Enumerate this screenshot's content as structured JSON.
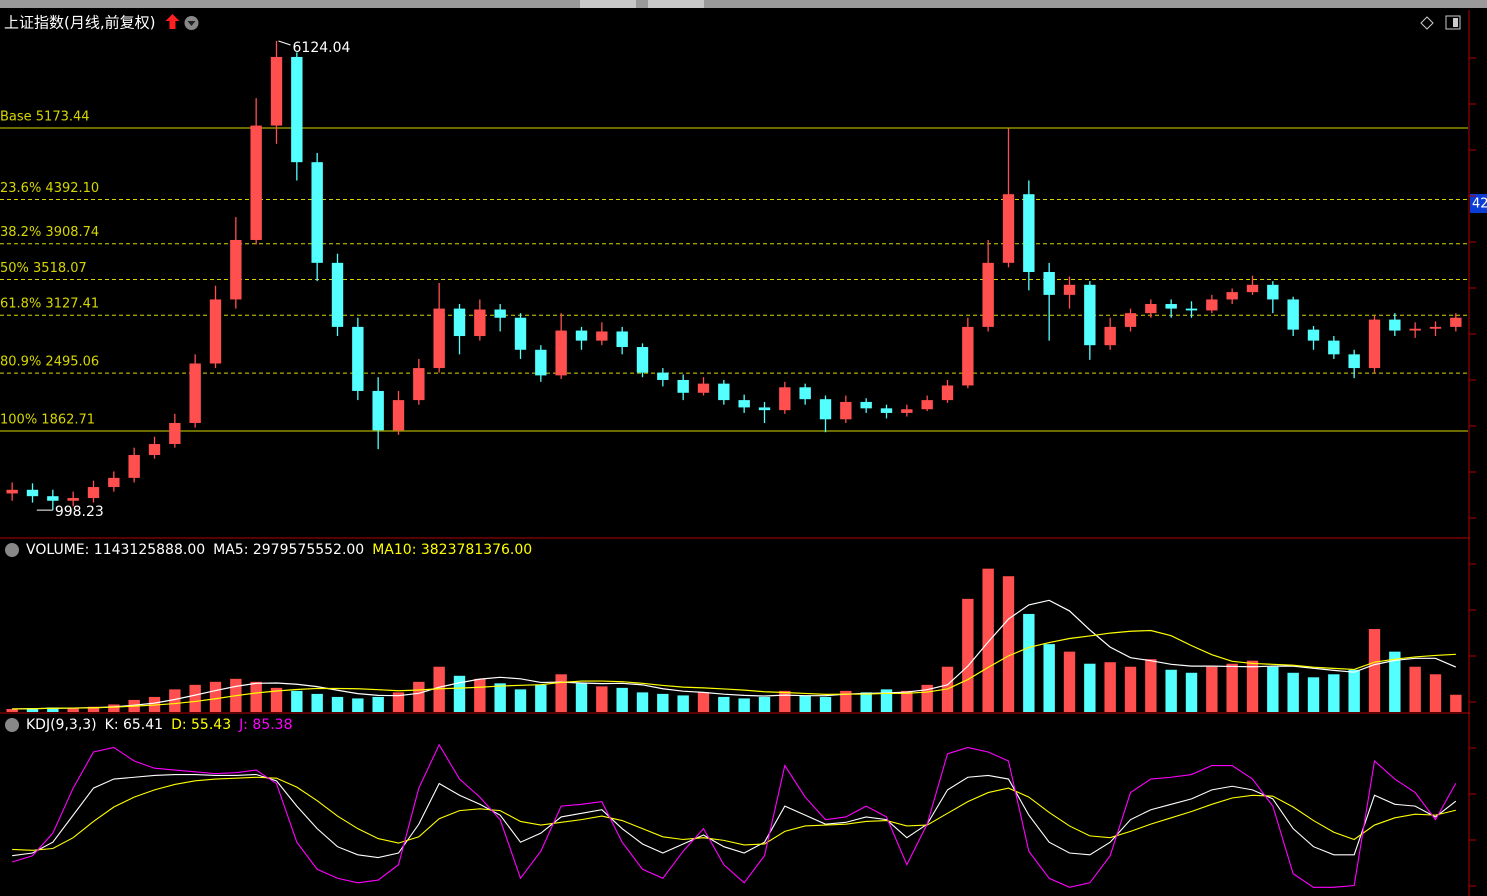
{
  "chart_data": [
    {
      "type": "candlestick",
      "title": "上证指数(月线,前复权)",
      "price_tag": "42",
      "ylim": [
        704,
        6463
      ],
      "up_color": "#ff4f4f",
      "down_color": "#54ffff",
      "levels": [
        {
          "label": "Base 5173.44",
          "value": 5173.44,
          "style": "solid"
        },
        {
          "label": "23.6% 4392.10",
          "value": 4392.1,
          "style": "dashed"
        },
        {
          "label": "38.2% 3908.74",
          "value": 3908.74,
          "style": "dashed"
        },
        {
          "label": "50% 3518.07",
          "value": 3518.07,
          "style": "dashed"
        },
        {
          "label": "61.8% 3127.41",
          "value": 3127.41,
          "style": "dashed"
        },
        {
          "label": "80.9% 2495.06",
          "value": 2495.06,
          "style": "dashed"
        },
        {
          "label": "100% 1862.71",
          "value": 1862.71,
          "style": "solid"
        }
      ],
      "level_color": "#d6d600",
      "open": [
        1180,
        1220,
        1150,
        1100,
        1130,
        1250,
        1350,
        1600,
        1720,
        1950,
        2600,
        3300,
        3950,
        5200,
        5950,
        4800,
        3700,
        3000,
        2300,
        1870,
        2200,
        2550,
        3200,
        2900,
        3190,
        3100,
        2750,
        2470,
        2960,
        2850,
        2950,
        2780,
        2500,
        2420,
        2280,
        2380,
        2200,
        2120,
        2090,
        2340,
        2210,
        1990,
        2180,
        2110,
        2060,
        2100,
        2200,
        2360,
        3000,
        3700,
        4450,
        3600,
        3350,
        3460,
        2800,
        3000,
        3150,
        3250,
        3200,
        3180,
        3300,
        3380,
        3460,
        3300,
        2970,
        2850,
        2700,
        2550,
        3080,
        2960,
        2980,
        3000
      ],
      "high": [
        1300,
        1290,
        1220,
        1200,
        1320,
        1420,
        1680,
        1800,
        2050,
        2700,
        3450,
        4200,
        5500,
        6124.04,
        6000,
        4900,
        3800,
        3100,
        2450,
        2300,
        2650,
        3480,
        3250,
        3300,
        3250,
        3150,
        2800,
        3150,
        3000,
        3050,
        3000,
        2820,
        2550,
        2480,
        2450,
        2420,
        2260,
        2180,
        2400,
        2380,
        2250,
        2250,
        2220,
        2150,
        2150,
        2250,
        2420,
        3100,
        3950,
        5166,
        4600,
        3700,
        3550,
        3500,
        3100,
        3200,
        3300,
        3300,
        3280,
        3350,
        3420,
        3560,
        3500,
        3330,
        3010,
        2900,
        2750,
        3120,
        3150,
        3050,
        3060,
        3150
      ],
      "low": [
        1100,
        1080,
        998.23,
        1040,
        1080,
        1200,
        1300,
        1560,
        1680,
        1900,
        2550,
        3200,
        3900,
        5000,
        4600,
        3500,
        2900,
        2200,
        1664,
        1820,
        2150,
        2500,
        2700,
        2850,
        2950,
        2650,
        2400,
        2430,
        2750,
        2800,
        2700,
        2450,
        2350,
        2200,
        2250,
        2150,
        2060,
        1950,
        2050,
        2150,
        1849,
        1950,
        2060,
        2000,
        2020,
        2080,
        2170,
        2330,
        2950,
        3650,
        3400,
        2850,
        3200,
        2640,
        2750,
        2950,
        3100,
        3100,
        3100,
        3150,
        3250,
        3350,
        3150,
        2900,
        2750,
        2650,
        2440,
        2500,
        2900,
        2880,
        2900,
        2950
      ],
      "close": [
        1220,
        1150,
        1100,
        1130,
        1250,
        1350,
        1600,
        1720,
        1950,
        2600,
        3300,
        3950,
        5200,
        5950,
        4800,
        3700,
        3000,
        2300,
        1870,
        2200,
        2550,
        3200,
        2900,
        3190,
        3100,
        2750,
        2470,
        2960,
        2850,
        2950,
        2780,
        2500,
        2420,
        2280,
        2380,
        2200,
        2120,
        2090,
        2340,
        2210,
        1990,
        2180,
        2110,
        2060,
        2100,
        2200,
        2360,
        3000,
        3700,
        4450,
        3600,
        3350,
        3460,
        2800,
        3000,
        3150,
        3250,
        3200,
        3180,
        3300,
        3380,
        3460,
        3300,
        2970,
        2850,
        2700,
        2550,
        3080,
        2960,
        2980,
        3000,
        3100
      ]
    },
    {
      "type": "bar",
      "ylim": [
        0,
        11400000000
      ],
      "series": [
        {
          "name": "VOLUME: 1143125888.00",
          "type": "bar",
          "color": "#ffffff",
          "values": [
            200000000.0,
            250000000.0,
            300000000.0,
            300000000.0,
            350000000.0,
            500000000.0,
            800000000.0,
            1000000000.0,
            1500000000.0,
            1800000000.0,
            2000000000.0,
            2200000000.0,
            2000000000.0,
            1600000000.0,
            1400000000.0,
            1200000000.0,
            1000000000.0,
            900000000.0,
            1000000000.0,
            1300000000.0,
            2000000000.0,
            3000000000.0,
            2400000000.0,
            2200000000.0,
            1900000000.0,
            1500000000.0,
            1800000000.0,
            2500000000.0,
            1900000000.0,
            1700000000.0,
            1600000000.0,
            1300000000.0,
            1200000000.0,
            1100000000.0,
            1300000000.0,
            1000000000.0,
            900000000.0,
            1000000000.0,
            1400000000.0,
            1100000000.0,
            1000000000.0,
            1400000000.0,
            1300000000.0,
            1500000000.0,
            1400000000.0,
            1800000000.0,
            3000000000.0,
            7500000000.0,
            9500000000.0,
            9000000000.0,
            6500000000.0,
            4500000000.0,
            4000000000.0,
            3200000000.0,
            3300000000.0,
            3000000000.0,
            3500000000.0,
            2800000000.0,
            2600000000.0,
            3000000000.0,
            3200000000.0,
            3400000000.0,
            3000000000.0,
            2600000000.0,
            2300000000.0,
            2500000000.0,
            2800000000.0,
            5500000000.0,
            4000000000.0,
            3000000000.0,
            2500000000.0,
            1143125888
          ]
        },
        {
          "name": "MA5: 2979575552.00",
          "type": "line",
          "color": "#ffffff",
          "values": [
            200000000.0,
            220000000.0,
            250000000.0,
            260000000.0,
            280000000.0,
            340000000.0,
            450000000.0,
            590000000.0,
            830000000.0,
            1120000000.0,
            1420000000.0,
            1700000000.0,
            1900000000.0,
            1920000000.0,
            1840000000.0,
            1680000000.0,
            1440000000.0,
            1220000000.0,
            1100000000.0,
            1080000000.0,
            1240000000.0,
            1640000000.0,
            1940000000.0,
            2180000000.0,
            2300000000.0,
            2200000000.0,
            1960000000.0,
            1980000000.0,
            1920000000.0,
            1880000000.0,
            1900000000.0,
            1800000000.0,
            1540000000.0,
            1380000000.0,
            1300000000.0,
            1180000000.0,
            1100000000.0,
            1060000000.0,
            1120000000.0,
            1080000000.0,
            1080000000.0,
            1180000000.0,
            1240000000.0,
            1260000000.0,
            1320000000.0,
            1480000000.0,
            1800000000.0,
            3040000000.0,
            4640000000.0,
            6160000000.0,
            7100000000.0,
            7400000000.0,
            6700000000.0,
            5440000000.0,
            4300000000.0,
            3600000000.0,
            3400000000.0,
            3160000000.0,
            3040000000.0,
            3040000000.0,
            3020000000.0,
            3000000000.0,
            3040000000.0,
            3040000000.0,
            2900000000.0,
            2760000000.0,
            2640000000.0,
            3140000000.0,
            3420000000.0,
            3560000000.0,
            3560000000.0,
            2979575552
          ]
        },
        {
          "name": "MA10: 3823781376.00",
          "type": "line",
          "color": "#ffff00",
          "values": [
            200000000.0,
            220000000.0,
            250000000.0,
            260000000.0,
            280000000.0,
            320000000.0,
            390000000.0,
            460000000.0,
            560000000.0,
            700000000.0,
            880000000.0,
            1080000000.0,
            1260000000.0,
            1390000000.0,
            1490000000.0,
            1560000000.0,
            1560000000.0,
            1540000000.0,
            1480000000.0,
            1410000000.0,
            1460000000.0,
            1540000000.0,
            1580000000.0,
            1640000000.0,
            1720000000.0,
            1770000000.0,
            1810000000.0,
            1960000000.0,
            2050000000.0,
            2050000000.0,
            2010000000.0,
            1900000000.0,
            1760000000.0,
            1650000000.0,
            1600000000.0,
            1530000000.0,
            1450000000.0,
            1340000000.0,
            1290000000.0,
            1230000000.0,
            1170000000.0,
            1180000000.0,
            1190000000.0,
            1230000000.0,
            1240000000.0,
            1320000000.0,
            1530000000.0,
            2150000000.0,
            2960000000.0,
            3720000000.0,
            4280000000.0,
            4600000000.0,
            4870000000.0,
            5040000000.0,
            5230000000.0,
            5350000000.0,
            5400000000.0,
            5060000000.0,
            4400000000.0,
            3800000000.0,
            3360000000.0,
            3220000000.0,
            3160000000.0,
            3100000000.0,
            2970000000.0,
            2890000000.0,
            2820000000.0,
            3300000000.0,
            3500000000.0,
            3650000000.0,
            3750000000.0,
            3823781376
          ]
        }
      ]
    },
    {
      "type": "line",
      "title": "KDJ(9,3,3)",
      "ylim": [
        -33,
        161
      ],
      "series": [
        {
          "name": "K: 65.41",
          "color": "#ffffff",
          "values": [
            5,
            8,
            20,
            50,
            80,
            90,
            92,
            94,
            95,
            95,
            94,
            94,
            95,
            88,
            60,
            35,
            15,
            6,
            3,
            8,
            40,
            85,
            72,
            62,
            50,
            20,
            30,
            48,
            52,
            56,
            35,
            18,
            8,
            18,
            28,
            15,
            8,
            20,
            60,
            50,
            40,
            42,
            48,
            45,
            25,
            40,
            78,
            92,
            94,
            90,
            50,
            20,
            8,
            6,
            20,
            45,
            56,
            62,
            68,
            78,
            82,
            78,
            68,
            35,
            15,
            6,
            6,
            72,
            62,
            60,
            48,
            65.41
          ]
        },
        {
          "name": "D: 55.43",
          "color": "#ffff00",
          "values": [
            12,
            11,
            13,
            25,
            43,
            59,
            70,
            78,
            84,
            88,
            90,
            91,
            92,
            91,
            81,
            66,
            49,
            35,
            24,
            19,
            26,
            46,
            55,
            57,
            55,
            43,
            39,
            42,
            45,
            49,
            44,
            35,
            26,
            23,
            25,
            22,
            17,
            18,
            32,
            38,
            39,
            40,
            43,
            44,
            38,
            39,
            52,
            65,
            75,
            80,
            70,
            53,
            38,
            27,
            25,
            32,
            40,
            47,
            54,
            62,
            69,
            72,
            71,
            59,
            44,
            31,
            23,
            39,
            47,
            51,
            50,
            55.43
          ]
        },
        {
          "name": "J: 85.38",
          "color": "#ff00ff",
          "values": [
            -2,
            5,
            30,
            80,
            120,
            125,
            110,
            102,
            100,
            98,
            96,
            97,
            100,
            85,
            20,
            -10,
            -20,
            -25,
            -22,
            -5,
            80,
            128,
            90,
            70,
            45,
            -20,
            10,
            60,
            62,
            65,
            20,
            -10,
            -20,
            10,
            35,
            -5,
            -25,
            5,
            105,
            70,
            45,
            48,
            60,
            48,
            -5,
            40,
            118,
            125,
            120,
            110,
            10,
            -20,
            -30,
            -25,
            5,
            75,
            90,
            92,
            95,
            105,
            105,
            90,
            60,
            -15,
            -30,
            -30,
            -28,
            110,
            90,
            75,
            45,
            85.38
          ]
        }
      ]
    }
  ]
}
